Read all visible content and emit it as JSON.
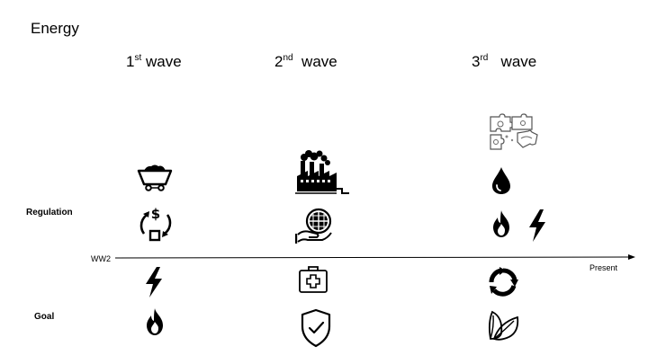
{
  "title": "Energy",
  "waves": [
    {
      "num": "1",
      "sup": "st",
      "word": "wave"
    },
    {
      "num": "2",
      "sup": "nd",
      "word": "wave"
    },
    {
      "num": "3",
      "sup": "rd",
      "word": "wave"
    }
  ],
  "rows": {
    "regulation": "Regulation",
    "goal": "Goal"
  },
  "timeline": {
    "start": "WW2",
    "end": "Present"
  },
  "icons": {
    "wave1": [
      "coal-cart-icon",
      "money-cycle-icon",
      "lightning-icon",
      "flame-icon"
    ],
    "wave2": [
      "factory-icon",
      "globe-hand-icon",
      "first-aid-kit-icon",
      "shield-check-icon"
    ],
    "wave3": [
      "puzzle-icon",
      "oil-drop-icon",
      "flame-icon",
      "lightning-icon",
      "recycle-icon",
      "leaves-icon"
    ]
  }
}
